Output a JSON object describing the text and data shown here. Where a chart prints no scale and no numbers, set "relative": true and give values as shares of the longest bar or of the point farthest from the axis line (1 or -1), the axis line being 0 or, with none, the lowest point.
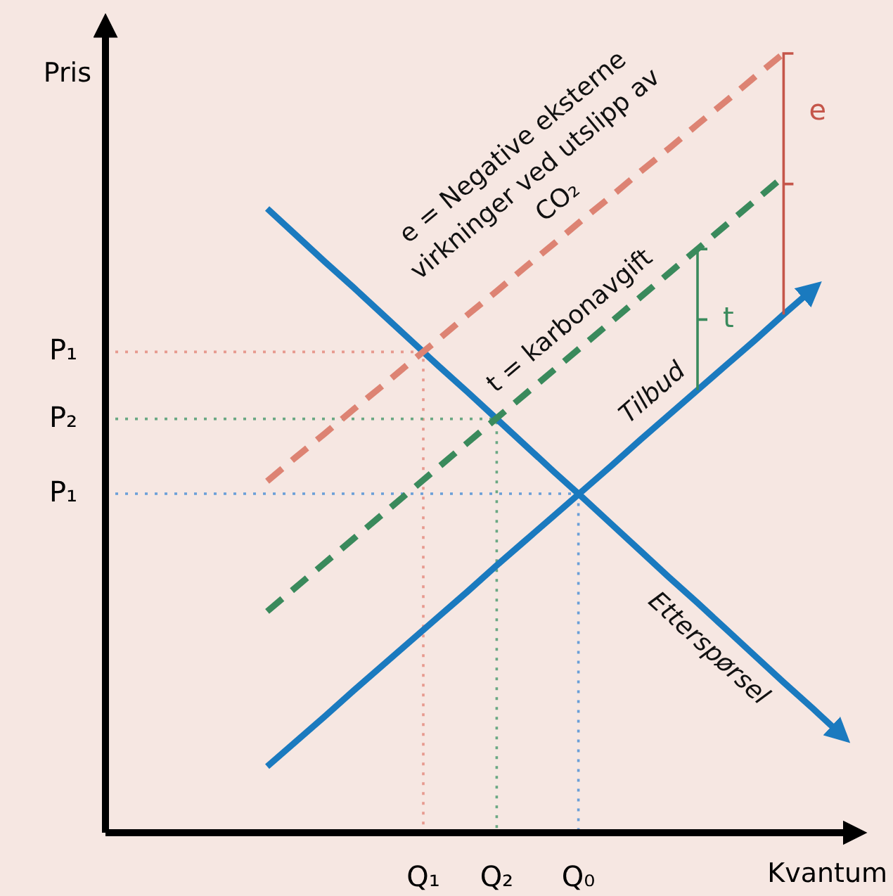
{
  "chart_data": {
    "type": "line",
    "relative": true,
    "xlabel": "Kvantum",
    "categories": [
      null,
      null,
      null,
      null,
      null,
      null,
      null,
      null,
      null,
      null,
      null,
      null,
      null,
      null,
      null,
      null,
      null,
      null,
      null,
      null,
      null
    ],
    "ref_lines": [
      {
        "axis": "y",
        "value": 0.617,
        "label": "P₁",
        "color": "#e79a8f",
        "line_style": "dotted"
      },
      {
        "axis": "y",
        "value": 0.531,
        "label": "P₂",
        "color": "#6aa883",
        "line_style": "dotted"
      },
      {
        "axis": "y",
        "value": 0.435,
        "label": "P₁",
        "color": "#6a9fd8",
        "line_style": "dotted"
      }
    ],
    "series": [
      {
        "name": "Etterspørsel",
        "color": "#1a7abf",
        "line_style": "solid",
        "values": [
          0.801,
          0.767,
          0.733,
          0.7,
          0.666,
          0.632,
          0.598,
          0.565,
          0.531,
          0.497,
          0.463,
          0.43,
          0.396,
          0.362,
          0.328,
          0.295,
          0.261,
          0.227,
          0.193,
          0.16,
          0.126
        ]
      },
      {
        "name": "Tilbud",
        "color": "#1a7abf",
        "line_style": "solid",
        "values": [
          0.085,
          0.117,
          0.149,
          0.182,
          0.214,
          0.246,
          0.278,
          0.31,
          0.343,
          0.375,
          0.407,
          0.439,
          0.471,
          0.504,
          0.536,
          0.568,
          0.6,
          0.632,
          0.665,
          0.697,
          null
        ]
      },
      {
        "name": "t = karbonavgift",
        "color": "#3a8a5c",
        "line_style": "dashed",
        "values": [
          0.284,
          0.315,
          0.346,
          0.377,
          0.408,
          0.439,
          0.47,
          0.501,
          0.532,
          0.563,
          0.594,
          0.625,
          0.656,
          0.687,
          0.718,
          0.749,
          0.78,
          0.811,
          0.842,
          null,
          null
        ]
      },
      {
        "name": "e = Negative eksterne virkninger ved utslipp av CO₂",
        "color": "#dd8373",
        "line_style": "dashed",
        "values": [
          0.451,
          0.482,
          0.512,
          0.543,
          0.573,
          0.604,
          0.634,
          0.665,
          0.695,
          0.726,
          0.756,
          0.787,
          0.817,
          0.848,
          0.878,
          0.909,
          0.939,
          0.97,
          1.0,
          null,
          null
        ]
      }
    ],
    "annotations": [
      "e",
      "t",
      "Q₁",
      "Q₂",
      "Q₀",
      "Pris"
    ]
  }
}
